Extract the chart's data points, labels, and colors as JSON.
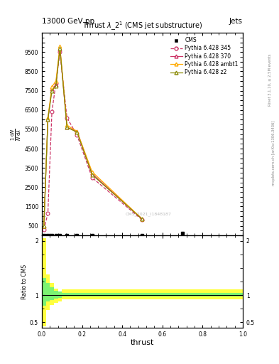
{
  "title": "13000 GeV pp",
  "title_right": "Jets",
  "plot_title": "Thrust $\\lambda$_2$^1$ (CMS jet substructure)",
  "xlabel": "thrust",
  "watermark": "CMS_2021_I1848187",
  "rivet_label": "Rivet 3.1.10, ≥ 2.5M events",
  "arxiv_label": "mcplots.cern.ch [arXiv:1306.3436]",
  "color_cms": "#000000",
  "color_p345": "#cc3366",
  "color_p370": "#cc3366",
  "color_pambt1": "#ffaa00",
  "color_pz2": "#888800",
  "p345_x": [
    0.01,
    0.03,
    0.05,
    0.07,
    0.09,
    0.125,
    0.175,
    0.25,
    0.5
  ],
  "p345_y": [
    0.3,
    1.15,
    6.4,
    7.9,
    9.5,
    6.1,
    5.2,
    3.0,
    0.8
  ],
  "p370_x": [
    0.01,
    0.03,
    0.05,
    0.07,
    0.09,
    0.125,
    0.175,
    0.25,
    0.5
  ],
  "p370_y": [
    0.5,
    6.0,
    7.6,
    7.8,
    9.7,
    5.6,
    5.4,
    3.2,
    0.85
  ],
  "pambt1_x": [
    0.01,
    0.03,
    0.05,
    0.07,
    0.09,
    0.125,
    0.175,
    0.25,
    0.5
  ],
  "pambt1_y": [
    0.5,
    6.1,
    7.7,
    8.0,
    9.8,
    5.7,
    5.4,
    3.3,
    0.85
  ],
  "pz2_x": [
    0.01,
    0.03,
    0.05,
    0.07,
    0.09,
    0.125,
    0.175,
    0.25,
    0.5
  ],
  "pz2_y": [
    0.5,
    6.0,
    7.5,
    7.75,
    9.7,
    5.6,
    5.35,
    3.15,
    0.84
  ],
  "cms_x": [
    0.01,
    0.03,
    0.05,
    0.07,
    0.09,
    0.125,
    0.175,
    0.25,
    0.5,
    0.7
  ],
  "cms_y": [
    0.0,
    0.0,
    0.0,
    0.0,
    0.0,
    0.0,
    0.0,
    0.0,
    0.0,
    0.1
  ],
  "main_ylim": [
    0,
    10.5
  ],
  "main_ytick_vals": [
    0,
    0.5,
    1.0,
    1.5,
    2.0,
    2.5,
    3.0,
    3.5,
    4.0,
    4.5,
    5.0,
    5.5,
    6.0,
    6.5,
    7.0,
    7.5,
    8.0,
    8.5,
    9.0,
    9.5,
    10.0
  ],
  "main_ytick_labels": [
    "",
    "500",
    "",
    "1500",
    "",
    "2500",
    "",
    "3500",
    "",
    "4500",
    "",
    "5500",
    "",
    "6500",
    "",
    "7500",
    "",
    "8500",
    "",
    "9500",
    ""
  ],
  "xlim": [
    0.0,
    1.0
  ],
  "ratio_ylim": [
    0.4,
    2.1
  ],
  "ratio_yticks": [
    0.5,
    1.0,
    2.0
  ],
  "ratio_yellow_bins": [
    0.0,
    0.02,
    0.04,
    0.06,
    0.08,
    0.1,
    0.15,
    0.2,
    0.3,
    0.7,
    1.0
  ],
  "ratio_yellow_lo": [
    0.42,
    0.72,
    0.82,
    0.85,
    0.88,
    0.92,
    0.92,
    0.92,
    0.92,
    0.92
  ],
  "ratio_yellow_hi": [
    2.05,
    1.38,
    1.22,
    1.12,
    1.07,
    1.1,
    1.1,
    1.1,
    1.1,
    1.1
  ],
  "ratio_green_bins": [
    0.0,
    0.02,
    0.04,
    0.06,
    0.08,
    0.1,
    0.15,
    0.2,
    0.3,
    0.7,
    1.0
  ],
  "ratio_green_lo": [
    0.8,
    0.88,
    0.91,
    0.93,
    0.95,
    0.97,
    0.97,
    0.97,
    0.97,
    0.97
  ],
  "ratio_green_hi": [
    1.32,
    1.22,
    1.14,
    1.08,
    1.06,
    1.04,
    1.04,
    1.04,
    1.04,
    1.04
  ]
}
